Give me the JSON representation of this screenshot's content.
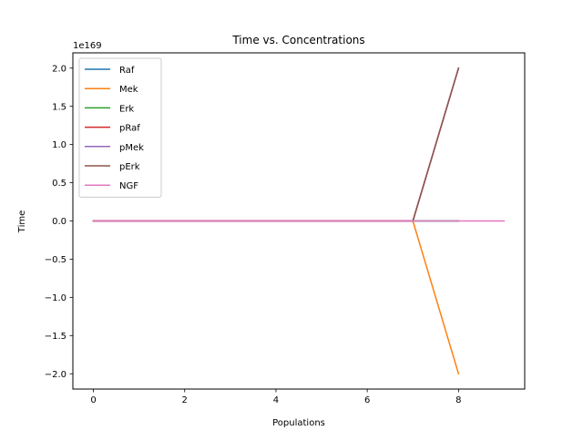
{
  "chart_data": {
    "type": "line",
    "title": "Time vs. Concentrations",
    "xlabel": "Populations",
    "ylabel": "Time",
    "offset_text": "1e169",
    "xlim": [
      -0.45,
      9.45
    ],
    "ylim": [
      -2.2,
      2.2
    ],
    "xticks": [
      0,
      2,
      4,
      6,
      8
    ],
    "yticks": [
      -2.0,
      -1.5,
      -1.0,
      -0.5,
      0.0,
      0.5,
      1.0,
      1.5,
      2.0
    ],
    "ytick_labels": [
      "−2.0",
      "−1.5",
      "−1.0",
      "−0.5",
      "0.0",
      "0.5",
      "1.0",
      "1.5",
      "2.0"
    ],
    "grid": false,
    "legend_position": "upper-left",
    "series": [
      {
        "name": "Raf",
        "color": "#1f77b4",
        "x": [
          0,
          1,
          2,
          3,
          4,
          5,
          6,
          7,
          8
        ],
        "y": [
          0,
          0,
          0,
          0,
          0,
          0,
          0,
          0,
          0
        ]
      },
      {
        "name": "Mek",
        "color": "#ff7f0e",
        "x": [
          0,
          1,
          2,
          3,
          4,
          5,
          6,
          7,
          8
        ],
        "y": [
          0,
          0,
          0,
          0,
          0,
          0,
          0,
          0,
          -2.0
        ]
      },
      {
        "name": "Erk",
        "color": "#2ca02c",
        "x": [
          0,
          1,
          2,
          3,
          4,
          5,
          6,
          7,
          8
        ],
        "y": [
          0,
          0,
          0,
          0,
          0,
          0,
          0,
          0,
          0
        ]
      },
      {
        "name": "pRaf",
        "color": "#d62728",
        "x": [
          0,
          1,
          2,
          3,
          4,
          5,
          6,
          7,
          8
        ],
        "y": [
          0,
          0,
          0,
          0,
          0,
          0,
          0,
          0,
          2.0
        ]
      },
      {
        "name": "pMek",
        "color": "#9467bd",
        "x": [
          0,
          1,
          2,
          3,
          4,
          5,
          6,
          7,
          8
        ],
        "y": [
          0,
          0,
          0,
          0,
          0,
          0,
          0,
          0,
          2.0
        ]
      },
      {
        "name": "pErk",
        "color": "#8c564b",
        "x": [
          0,
          1,
          2,
          3,
          4,
          5,
          6,
          7,
          8
        ],
        "y": [
          0,
          0,
          0,
          0,
          0,
          0,
          0,
          0,
          2.0
        ]
      },
      {
        "name": "NGF",
        "color": "#e377c2",
        "x": [
          0,
          1,
          2,
          3,
          4,
          5,
          6,
          7,
          8,
          9
        ],
        "y": [
          0,
          0,
          0,
          0,
          0,
          0,
          0,
          0,
          0,
          0
        ]
      }
    ]
  }
}
